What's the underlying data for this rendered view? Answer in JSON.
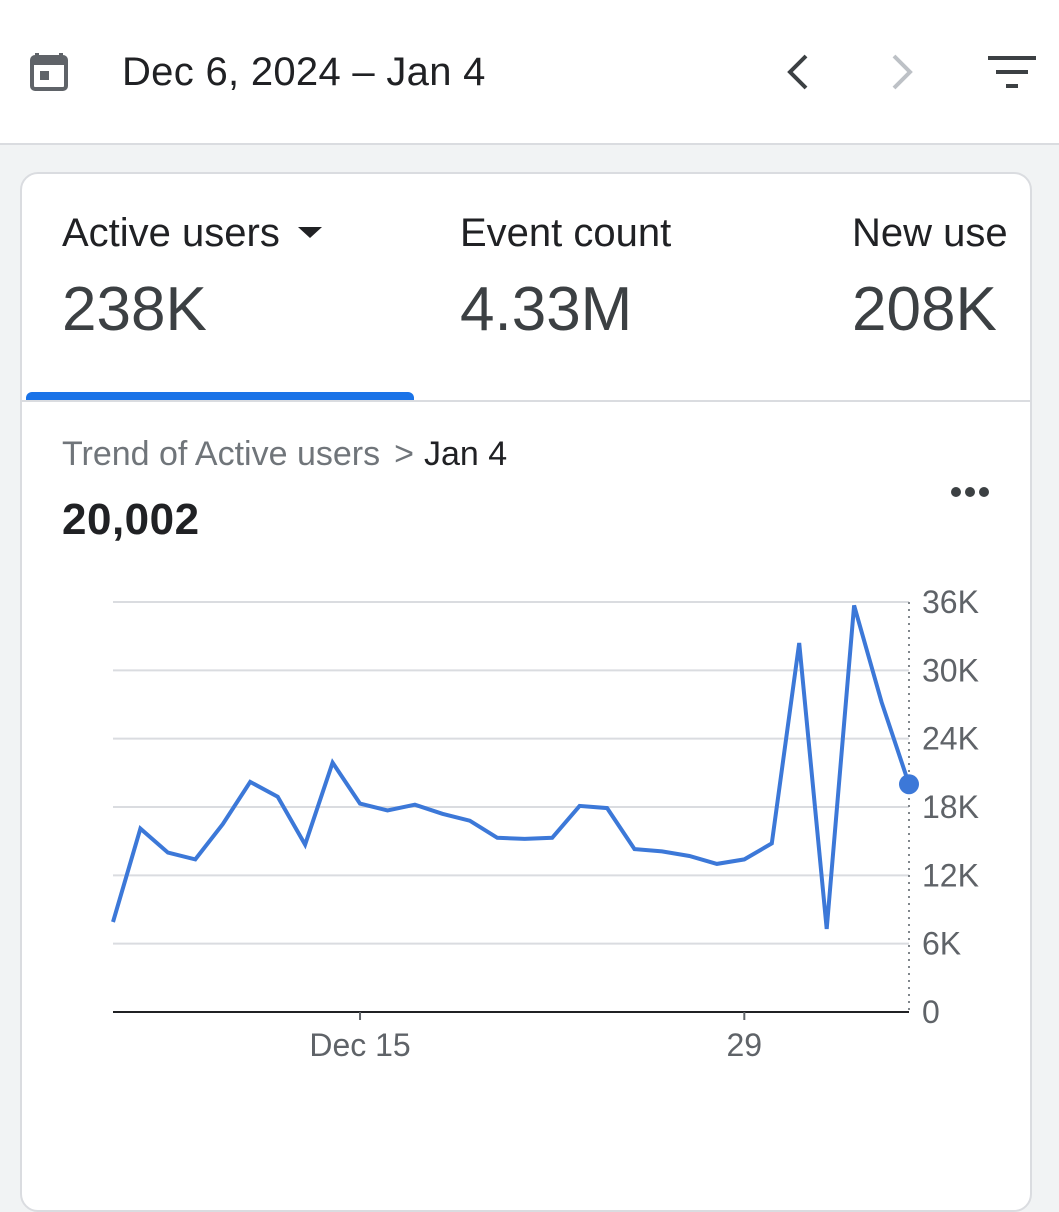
{
  "header": {
    "date_range": "Dec 6, 2024 – Jan 4"
  },
  "icons": {
    "calendar": "calendar-icon",
    "prev": "chevron-left-icon",
    "next": "chevron-right-icon",
    "filter": "filter-icon",
    "more": "more-horiz-icon"
  },
  "colors": {
    "accent": "#1a73e8",
    "line": "#3c78d8",
    "disabled": "#bdc1c6"
  },
  "metrics": [
    {
      "label": "Active users",
      "value": "238K",
      "selected": true
    },
    {
      "label": "Event count",
      "value": "4.33M",
      "selected": false
    },
    {
      "label": "New use",
      "value": "208K",
      "selected": false
    }
  ],
  "trend": {
    "breadcrumb_metric": "Trend of Active users",
    "breadcrumb_date": "Jan 4",
    "value": "20,002"
  },
  "chart_data": {
    "type": "line",
    "title": "",
    "xlabel": "",
    "ylabel": "",
    "x": [
      "Dec 6",
      "Dec 7",
      "Dec 8",
      "Dec 9",
      "Dec 10",
      "Dec 11",
      "Dec 12",
      "Dec 13",
      "Dec 14",
      "Dec 15",
      "Dec 16",
      "Dec 17",
      "Dec 18",
      "Dec 19",
      "Dec 20",
      "Dec 21",
      "Dec 22",
      "Dec 23",
      "Dec 24",
      "Dec 25",
      "Dec 26",
      "Dec 27",
      "Dec 28",
      "Dec 29",
      "Dec 30",
      "Dec 31",
      "Jan 1",
      "Jan 2",
      "Jan 3",
      "Jan 4"
    ],
    "series": [
      {
        "values": [
          7900,
          16100,
          14000,
          13400,
          16500,
          20200,
          18900,
          14700,
          21900,
          18300,
          17700,
          18200,
          17400,
          16800,
          15300,
          15200,
          15300,
          18100,
          17900,
          14300,
          14100,
          13700,
          13000,
          13400,
          14800,
          32400,
          7300,
          35700,
          27200,
          20002
        ]
      }
    ],
    "x_tick_labels": [
      {
        "index": 9,
        "label": "Dec 15"
      },
      {
        "index": 23,
        "label": "29"
      }
    ],
    "y_ticks": [
      "36K",
      "30K",
      "24K",
      "18K",
      "12K",
      "6K",
      "0"
    ],
    "ylim": [
      0,
      36000
    ],
    "y_axis_position": "right",
    "grid": true,
    "highlight_index": 29
  }
}
